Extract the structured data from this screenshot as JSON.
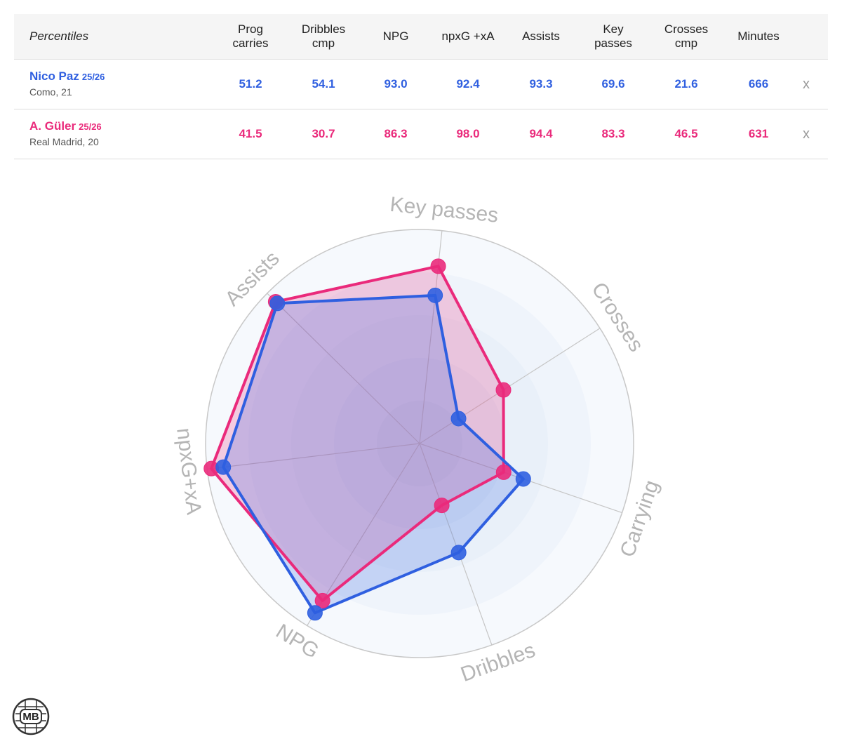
{
  "table": {
    "corner_label": "Percentiles",
    "columns": [
      [
        "Prog",
        "carries"
      ],
      [
        "Dribbles",
        "cmp"
      ],
      [
        "NPG"
      ],
      [
        "npxG +xA"
      ],
      [
        "Assists"
      ],
      [
        "Key",
        "passes"
      ],
      [
        "Crosses",
        "cmp"
      ],
      [
        "Minutes"
      ]
    ],
    "close_symbol": "x",
    "players": [
      {
        "name": "Nico Paz",
        "season": "25/26",
        "club_age": "Como, 21",
        "color": "#2f5fe0",
        "values": [
          "51.2",
          "54.1",
          "93.0",
          "92.4",
          "93.3",
          "69.6",
          "21.6",
          "666"
        ]
      },
      {
        "name": "A. Güler",
        "season": "25/26",
        "club_age": "Real Madrid, 20",
        "color": "#ea2a7b",
        "values": [
          "41.5",
          "30.7",
          "86.3",
          "98.0",
          "94.4",
          "83.3",
          "46.5",
          "631"
        ]
      }
    ]
  },
  "chart_data": {
    "type": "radar",
    "range": [
      0,
      100
    ],
    "axes": [
      "Key passes",
      "Crosses",
      "Carrying",
      "Dribbles",
      "NPG",
      "npxG+xA",
      "Assists"
    ],
    "series": [
      {
        "name": "Nico Paz",
        "color": "#2f5fe0",
        "values": [
          69.6,
          21.6,
          51.2,
          54.1,
          93.0,
          92.4,
          93.3
        ]
      },
      {
        "name": "A. Güler",
        "color": "#ea2a7b",
        "values": [
          83.3,
          46.5,
          41.5,
          30.7,
          86.3,
          98.0,
          94.4
        ]
      }
    ]
  },
  "logo": {
    "text": "MB"
  }
}
